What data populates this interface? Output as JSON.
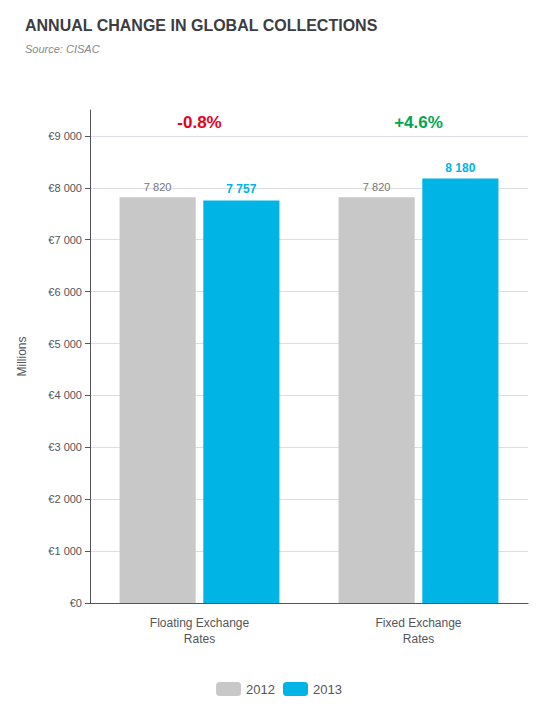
{
  "chart_data": {
    "type": "bar",
    "title": "ANNUAL CHANGE IN GLOBAL COLLECTIONS",
    "subtitle": "Source: CISAC",
    "categories": [
      "Floating Exchange\nRates",
      "Fixed Exchange\nRates"
    ],
    "series": [
      {
        "name": "2012",
        "color": "#c8c8c8",
        "values": [
          7820,
          7820
        ],
        "value_labels": [
          "7 820",
          "7 820"
        ]
      },
      {
        "name": "2013",
        "color": "#00b4e6",
        "values": [
          7757,
          8180
        ],
        "value_labels": [
          "7 757",
          "8 180"
        ]
      }
    ],
    "ylabel": "Millions",
    "ylim": [
      0,
      9500
    ],
    "yticks": [
      {
        "value": 0,
        "label": "€0"
      },
      {
        "value": 1000,
        "label": "€1 000"
      },
      {
        "value": 2000,
        "label": "€2 000"
      },
      {
        "value": 3000,
        "label": "€3 000"
      },
      {
        "value": 4000,
        "label": "€4 000"
      },
      {
        "value": 5000,
        "label": "€5 000"
      },
      {
        "value": 6000,
        "label": "€6 000"
      },
      {
        "value": 7000,
        "label": "€7 000"
      },
      {
        "value": 8000,
        "label": "€8 000"
      },
      {
        "value": 9000,
        "label": "€9 000"
      }
    ],
    "grid": true,
    "legend": "bottom",
    "data_labels": true,
    "annotations": [
      {
        "text": "-0.8%",
        "category": "Floating Exchange\nRates",
        "color": "#e8001c"
      },
      {
        "text": "+4.6%",
        "category": "Fixed Exchange\nRates",
        "color": "#00a650"
      }
    ]
  }
}
